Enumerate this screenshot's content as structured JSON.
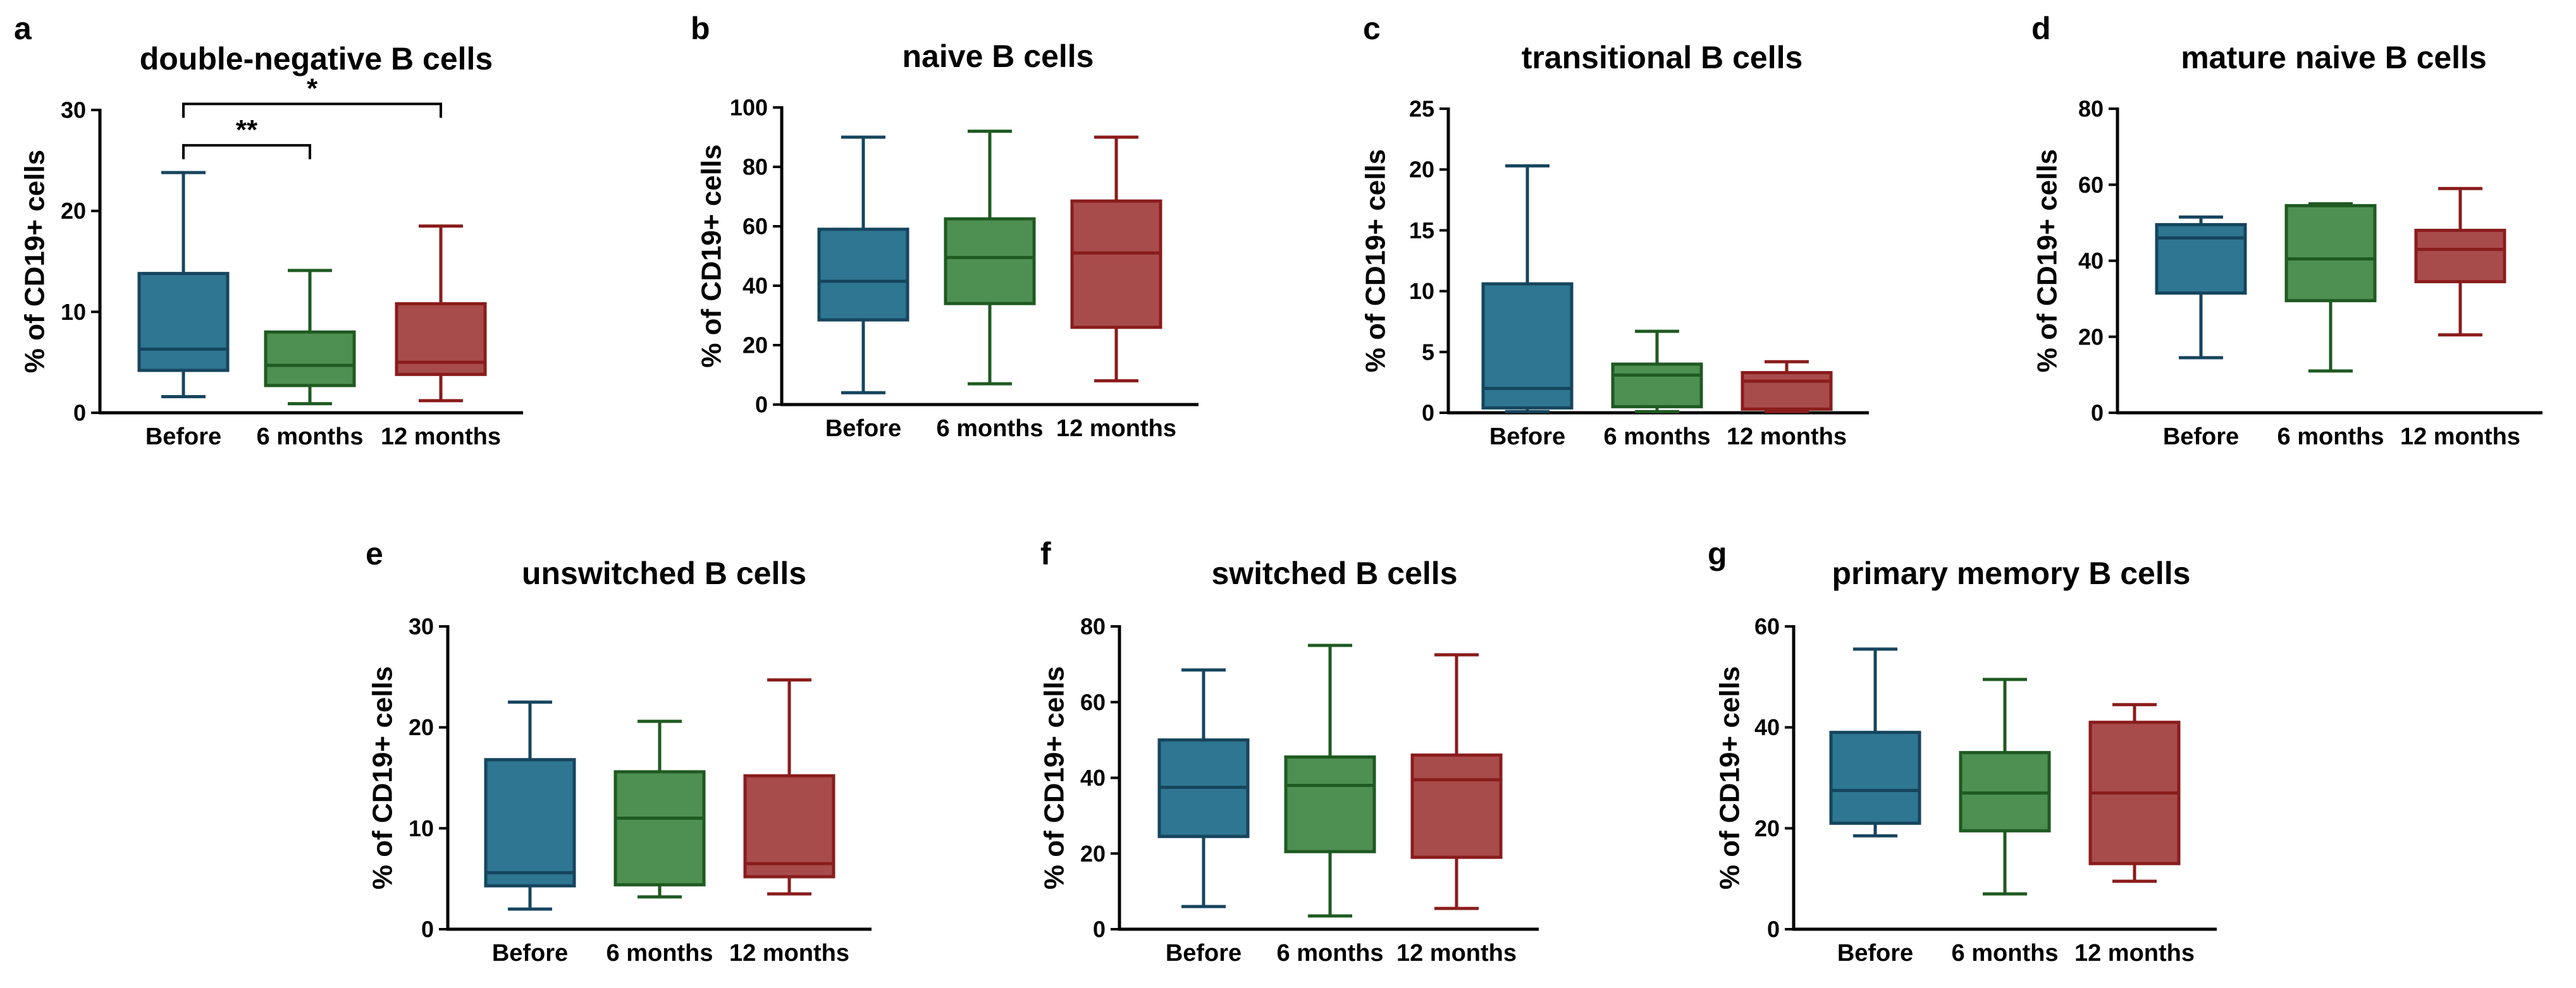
{
  "colors": {
    "before": "#2e7691",
    "before_stroke": "#16455e",
    "six_months": "#4e8f52",
    "six_months_stroke": "#1f5a21",
    "twelve_months": "#a84b4b",
    "twelve_months_stroke": "#8a1c1c",
    "axis": "#000000"
  },
  "chart_data": [
    {
      "type": "box",
      "letter": "a",
      "title": "double-negative B cells",
      "ylabel": "% of CD19+ cells",
      "categories": [
        "Before",
        "6 months",
        "12 months"
      ],
      "ylim": [
        0,
        30
      ],
      "yticks": [
        0,
        10,
        20,
        30
      ],
      "boxes": [
        {
          "min": 1.6,
          "q1": 4.2,
          "median": 6.3,
          "q3": 13.8,
          "max": 23.8
        },
        {
          "min": 0.9,
          "q1": 2.7,
          "median": 4.7,
          "q3": 8.0,
          "max": 14.1
        },
        {
          "min": 1.2,
          "q1": 3.8,
          "median": 5.0,
          "q3": 10.8,
          "max": 18.5
        }
      ],
      "significance": [
        {
          "from": 0,
          "to": 1,
          "label": "**",
          "y": 26.5
        },
        {
          "from": 0,
          "to": 2,
          "label": "*",
          "y": 30.6
        }
      ]
    },
    {
      "type": "box",
      "letter": "b",
      "title": "naive B cells",
      "ylabel": "% of CD19+ cells",
      "categories": [
        "Before",
        "6 months",
        "12 months"
      ],
      "ylim": [
        0,
        100
      ],
      "yticks": [
        0,
        20,
        40,
        60,
        80,
        100
      ],
      "boxes": [
        {
          "min": 4,
          "q1": 28.5,
          "median": 41.5,
          "q3": 59,
          "max": 90
        },
        {
          "min": 7,
          "q1": 34,
          "median": 49.5,
          "q3": 62.5,
          "max": 92
        },
        {
          "min": 8,
          "q1": 26,
          "median": 51,
          "q3": 68.5,
          "max": 90
        }
      ],
      "significance": []
    },
    {
      "type": "box",
      "letter": "c",
      "title": "transitional B cells",
      "ylabel": "% of CD19+ cells",
      "categories": [
        "Before",
        "6 months",
        "12 months"
      ],
      "ylim": [
        0,
        25
      ],
      "yticks": [
        0,
        5,
        10,
        15,
        20,
        25
      ],
      "boxes": [
        {
          "min": 0.1,
          "q1": 0.4,
          "median": 2.0,
          "q3": 10.6,
          "max": 20.3
        },
        {
          "min": 0.1,
          "q1": 0.5,
          "median": 3.1,
          "q3": 4.0,
          "max": 6.7
        },
        {
          "min": 0.1,
          "q1": 0.3,
          "median": 2.6,
          "q3": 3.3,
          "max": 4.2
        }
      ],
      "significance": []
    },
    {
      "type": "box",
      "letter": "d",
      "title": "mature naive B cells",
      "ylabel": "% of CD19+ cells",
      "categories": [
        "Before",
        "6 months",
        "12 months"
      ],
      "ylim": [
        0,
        80
      ],
      "yticks": [
        0,
        20,
        40,
        60,
        80
      ],
      "boxes": [
        {
          "min": 14.5,
          "q1": 31.5,
          "median": 46,
          "q3": 49.5,
          "max": 51.5
        },
        {
          "min": 11,
          "q1": 29.5,
          "median": 40.5,
          "q3": 54.5,
          "max": 55
        },
        {
          "min": 20.5,
          "q1": 34.5,
          "median": 43,
          "q3": 48,
          "max": 59
        }
      ],
      "significance": []
    },
    {
      "type": "box",
      "letter": "e",
      "title": "unswitched B cells",
      "ylabel": "% of CD19+ cells",
      "categories": [
        "Before",
        "6 months",
        "12 months"
      ],
      "ylim": [
        0,
        30
      ],
      "yticks": [
        0,
        10,
        20,
        30
      ],
      "boxes": [
        {
          "min": 2.0,
          "q1": 4.3,
          "median": 5.6,
          "q3": 16.8,
          "max": 22.5
        },
        {
          "min": 3.2,
          "q1": 4.4,
          "median": 11.0,
          "q3": 15.6,
          "max": 20.6
        },
        {
          "min": 3.5,
          "q1": 5.2,
          "median": 6.5,
          "q3": 15.2,
          "max": 24.7
        }
      ],
      "significance": []
    },
    {
      "type": "box",
      "letter": "f",
      "title": "switched B cells",
      "ylabel": "% of CD19+ cells",
      "categories": [
        "Before",
        "6 months",
        "12 months"
      ],
      "ylim": [
        0,
        80
      ],
      "yticks": [
        0,
        20,
        40,
        60,
        80
      ],
      "boxes": [
        {
          "min": 6,
          "q1": 24.5,
          "median": 37.5,
          "q3": 50,
          "max": 68.5
        },
        {
          "min": 3.5,
          "q1": 20.5,
          "median": 38,
          "q3": 45.5,
          "max": 75
        },
        {
          "min": 5.5,
          "q1": 19,
          "median": 39.5,
          "q3": 46,
          "max": 72.5
        }
      ],
      "significance": []
    },
    {
      "type": "box",
      "letter": "g",
      "title": "primary memory B cells",
      "ylabel": "% of CD19+ cells",
      "categories": [
        "Before",
        "6 months",
        "12 months"
      ],
      "ylim": [
        0,
        60
      ],
      "yticks": [
        0,
        20,
        40,
        60
      ],
      "boxes": [
        {
          "min": 18.5,
          "q1": 21,
          "median": 27.5,
          "q3": 39,
          "max": 55.5
        },
        {
          "min": 7,
          "q1": 19.5,
          "median": 27,
          "q3": 35,
          "max": 49.5
        },
        {
          "min": 9.5,
          "q1": 13,
          "median": 27,
          "q3": 41,
          "max": 44.5
        }
      ],
      "significance": []
    }
  ]
}
